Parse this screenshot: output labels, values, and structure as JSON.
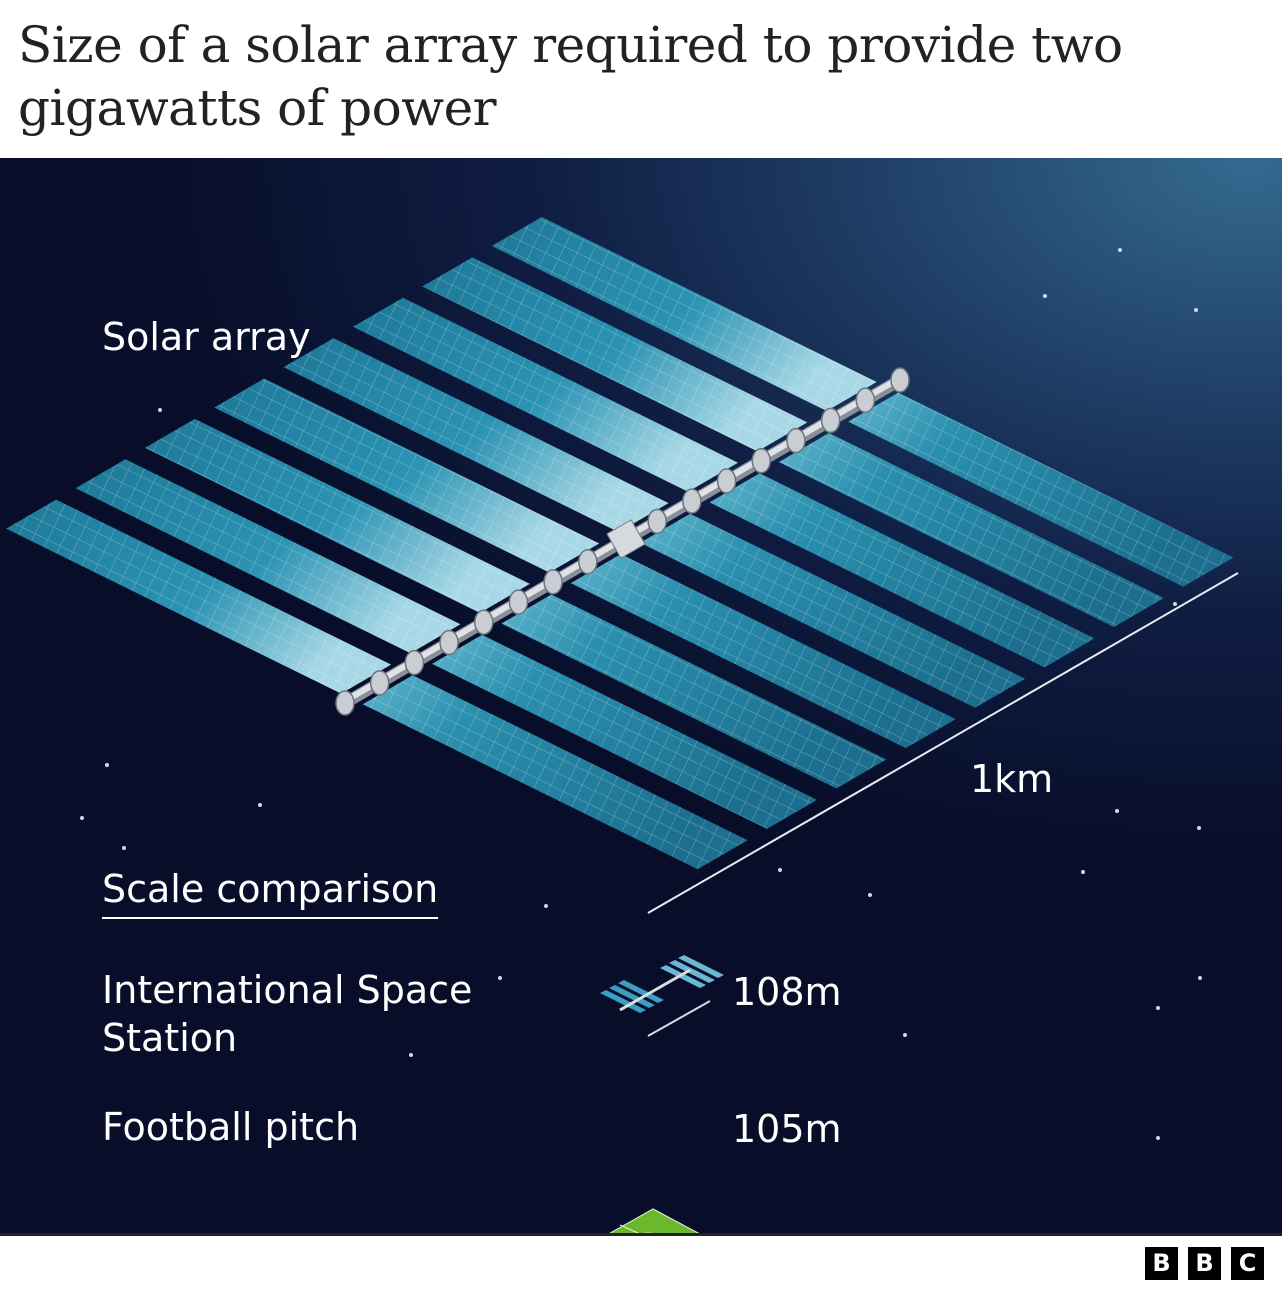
{
  "title": "Size of a solar array required to provide two gigawatts of power",
  "labels": {
    "solar_array": "Solar array",
    "scale_1km": "1km",
    "scale_comparison": "Scale comparison",
    "iss": "International Space Station",
    "iss_size": "108m",
    "pitch": "Football pitch",
    "pitch_size": "105m"
  },
  "logo": [
    "B",
    "B",
    "C"
  ],
  "colors": {
    "panel": "#2a8fae",
    "panel_light": "#a8d8e6",
    "pitch": "#6cb82c",
    "background": "#0b1433"
  }
}
